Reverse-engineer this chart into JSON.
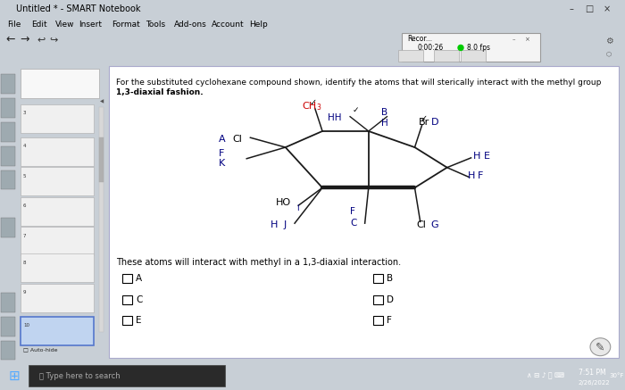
{
  "window_title": "Untitled * - SMART Notebook",
  "menu_items": [
    "File",
    "Edit",
    "View",
    "Insert",
    "Format",
    "Tools",
    "Add-ons",
    "Account",
    "Help"
  ],
  "recorder_time": "0:00:26",
  "recorder_fps": "8.0 fps",
  "slide_numbers": [
    "3",
    "4",
    "5",
    "6",
    "7",
    "8",
    "9",
    "10"
  ],
  "selected_slide": "10",
  "question_line1": "For the substituted cyclohexane compound shown, identify the atoms that will sterically interact with the methyl group",
  "question_line2": "1,3-diaxial fashion.",
  "interaction_text": "These atoms will interact with methyl in a 1,3-diaxial interaction.",
  "cb_left": [
    "A",
    "C",
    "E"
  ],
  "cb_right": [
    "B",
    "D",
    "F"
  ],
  "title_bar_color": "#f0f0f0",
  "menu_bar_color": "#f0f0f0",
  "toolbar_color": "#e8eaec",
  "sidebar_color": "#c0c8cc",
  "icon_strip_color": "#8a9298",
  "slide_area_color": "#d4dce4",
  "content_bg": "#ffffff",
  "taskbar_color": "#1c1c1c",
  "bond_color": "#1a1a1a",
  "label_blue": "#000080",
  "label_red": "#cc0000",
  "label_black": "#000000"
}
